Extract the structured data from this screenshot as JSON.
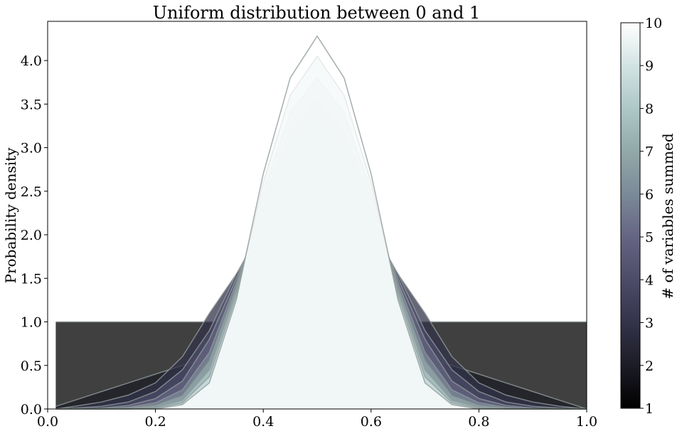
{
  "chart_data": {
    "type": "area",
    "title": "Uniform distribution between 0 and 1",
    "xlabel": "",
    "ylabel": "Probability density",
    "xlim": [
      0.0,
      1.0
    ],
    "ylim": [
      0.0,
      4.45
    ],
    "xticks": [
      "0.0",
      "0.2",
      "0.4",
      "0.6",
      "0.8",
      "1.0"
    ],
    "xtick_values": [
      0.0,
      0.2,
      0.4,
      0.6,
      0.8,
      1.0
    ],
    "yticks": [
      "0.0",
      "0.5",
      "1.0",
      "1.5",
      "2.0",
      "2.5",
      "3.0",
      "3.5",
      "4.0"
    ],
    "ytick_values": [
      0.0,
      0.5,
      1.0,
      1.5,
      2.0,
      2.5,
      3.0,
      3.5,
      4.0
    ],
    "grid": false,
    "x": [
      0.015,
      0.05,
      0.1,
      0.15,
      0.2,
      0.25,
      0.3,
      0.35,
      0.4,
      0.45,
      0.5,
      0.55,
      0.6,
      0.65,
      0.7,
      0.75,
      0.8,
      0.85,
      0.9,
      0.95,
      1.0
    ],
    "series": [
      {
        "n": 1,
        "values": [
          1.0,
          1.0,
          1.0,
          1.0,
          1.0,
          1.0,
          1.0,
          1.0,
          1.0,
          1.0,
          1.0,
          1.0,
          1.0,
          1.0,
          1.0,
          1.0,
          1.0,
          1.0,
          1.0,
          1.0,
          1.0
        ]
      },
      {
        "n": 2,
        "values": [
          0.03,
          0.1,
          0.2,
          0.3,
          0.4,
          0.5,
          0.6,
          0.7,
          0.8,
          0.9,
          1.97,
          1.9,
          0.8,
          0.7,
          0.6,
          0.5,
          0.4,
          0.3,
          0.2,
          0.1,
          0.0
        ]
      },
      {
        "n": 3,
        "values": [
          0.0,
          0.03,
          0.08,
          0.16,
          0.3,
          0.6,
          1.1,
          1.55,
          1.9,
          2.15,
          2.25,
          2.15,
          1.9,
          1.55,
          1.1,
          0.6,
          0.3,
          0.16,
          0.08,
          0.03,
          0.0
        ]
      },
      {
        "n": 4,
        "values": [
          0.0,
          0.01,
          0.03,
          0.08,
          0.2,
          0.45,
          0.9,
          1.55,
          2.1,
          2.5,
          2.65,
          2.5,
          2.1,
          1.55,
          0.9,
          0.45,
          0.2,
          0.08,
          0.03,
          0.01,
          0.0
        ]
      },
      {
        "n": 5,
        "values": [
          0.0,
          0.0,
          0.01,
          0.04,
          0.12,
          0.32,
          0.8,
          1.5,
          2.2,
          2.75,
          3.0,
          2.75,
          2.2,
          1.5,
          0.8,
          0.32,
          0.12,
          0.04,
          0.01,
          0.0,
          0.0
        ]
      },
      {
        "n": 6,
        "values": [
          0.0,
          0.0,
          0.0,
          0.02,
          0.07,
          0.22,
          0.65,
          1.45,
          2.3,
          3.0,
          3.28,
          3.0,
          2.3,
          1.45,
          0.65,
          0.22,
          0.07,
          0.02,
          0.0,
          0.0,
          0.0
        ]
      },
      {
        "n": 7,
        "values": [
          0.0,
          0.0,
          0.0,
          0.01,
          0.04,
          0.15,
          0.55,
          1.4,
          2.4,
          3.2,
          3.55,
          3.2,
          2.4,
          1.4,
          0.55,
          0.15,
          0.04,
          0.01,
          0.0,
          0.0,
          0.0
        ]
      },
      {
        "n": 8,
        "values": [
          0.0,
          0.0,
          0.0,
          0.0,
          0.02,
          0.1,
          0.45,
          1.35,
          2.5,
          3.4,
          3.8,
          3.4,
          2.5,
          1.35,
          0.45,
          0.1,
          0.02,
          0.0,
          0.0,
          0.0,
          0.0
        ]
      },
      {
        "n": 9,
        "values": [
          0.0,
          0.0,
          0.0,
          0.0,
          0.01,
          0.07,
          0.37,
          1.3,
          2.6,
          3.6,
          4.05,
          3.6,
          2.6,
          1.3,
          0.37,
          0.07,
          0.01,
          0.0,
          0.0,
          0.0,
          0.0
        ]
      },
      {
        "n": 10,
        "values": [
          0.0,
          0.0,
          0.0,
          0.0,
          0.0,
          0.05,
          0.3,
          1.25,
          2.7,
          3.8,
          4.28,
          3.8,
          2.7,
          1.25,
          0.3,
          0.05,
          0.0,
          0.0,
          0.0,
          0.0,
          0.0
        ]
      }
    ],
    "colorbar": {
      "label": "# of variables summed",
      "ticks": [
        "1",
        "2",
        "3",
        "4",
        "5",
        "6",
        "7",
        "8",
        "9",
        "10"
      ],
      "tick_values": [
        1,
        2,
        3,
        4,
        5,
        6,
        7,
        8,
        9,
        10
      ],
      "range": [
        1,
        10
      ],
      "colormap": "bone",
      "colors": [
        "#000000",
        "#1c1c26",
        "#33334a",
        "#4c4c69",
        "#656583",
        "#7b8a98",
        "#92a9a9",
        "#aec7c7",
        "#d3e3e3",
        "#ffffff"
      ]
    }
  }
}
